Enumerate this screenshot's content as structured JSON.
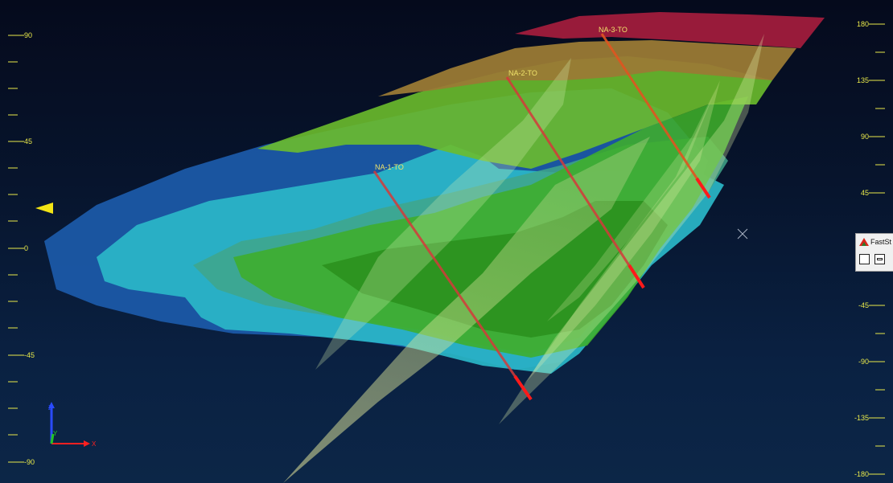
{
  "viewer": {
    "left_axis_ticks": [
      "90",
      "45",
      "0",
      "-45",
      "-90"
    ],
    "right_axis_ticks": [
      "180",
      "135",
      "90",
      "45",
      "-45",
      "-90",
      "-135",
      "-180"
    ],
    "drillholes": [
      "NA-1-TO",
      "NA-2-TO",
      "NA-3-TO"
    ],
    "axis_triad": {
      "z": "Z",
      "y": "Y",
      "x": "X"
    },
    "colors": {
      "background_top": "#050a1c",
      "background_bottom": "#0c2647",
      "axis_ticks": "#e9e94a",
      "hole_label": "#f0e26a",
      "band_top": "#a01c3c",
      "band_orange": "#9a7a35",
      "band_green": "#3fae2a",
      "band_cyan": "#2ab7c8",
      "band_blue": "#1b58a6",
      "fault_plane": "#ffff99"
    }
  },
  "fast_panel": {
    "title": "FastSt",
    "icons": [
      "window-icon",
      "restore-icon"
    ]
  }
}
